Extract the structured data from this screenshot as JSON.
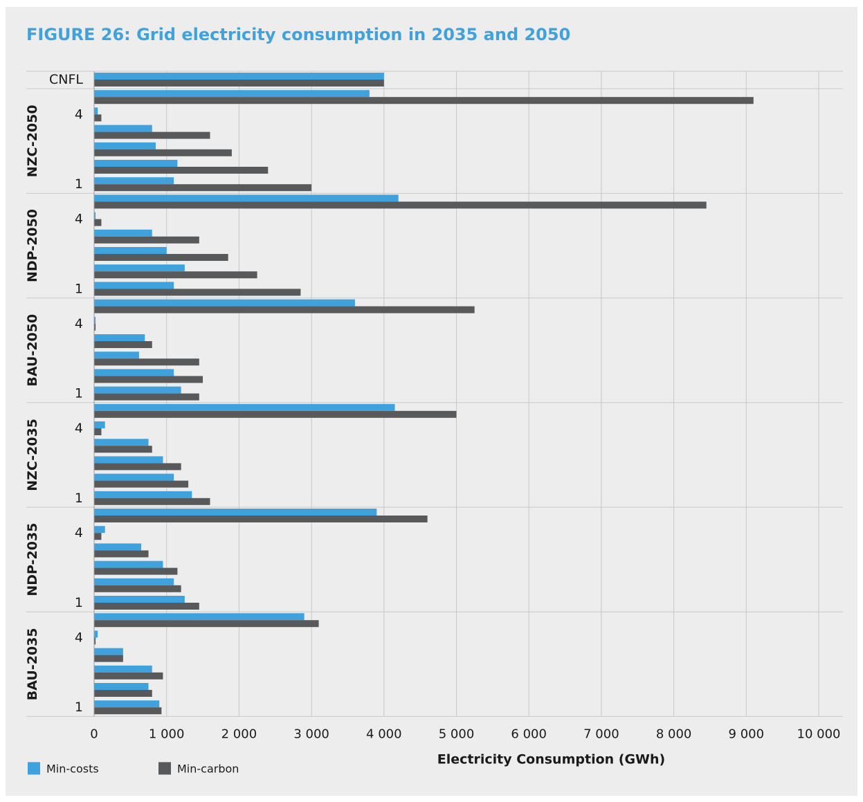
{
  "chart_data": {
    "type": "bar",
    "orientation": "horizontal",
    "title": "FIGURE 26: Grid electricity consumption in 2035 and 2050",
    "xlabel": "Electricity Consumption (GWh)",
    "ylabel": "",
    "xlim": [
      0,
      10000
    ],
    "xticks": [
      0,
      1000,
      2000,
      3000,
      4000,
      5000,
      6000,
      7000,
      8000,
      9000,
      10000
    ],
    "xtick_labels": [
      "0",
      "1 000",
      "2 000",
      "3 000",
      "4 000",
      "5 000",
      "6 000",
      "7 000",
      "8 000",
      "9 000",
      "10 000"
    ],
    "grid": true,
    "legend_position": "bottom-left",
    "series": [
      {
        "name": "Min-costs",
        "color": "#3fa2dd"
      },
      {
        "name": "Min-carbon",
        "color": "#58595b"
      }
    ],
    "groups": [
      {
        "name": "",
        "rows": [
          {
            "label": "CNFL",
            "values": [
              4000,
              4000
            ]
          }
        ]
      },
      {
        "name": "NZC-2050",
        "rows": [
          {
            "label": "",
            "values": [
              3800,
              9100
            ]
          },
          {
            "label": "4",
            "values": [
              50,
              100
            ]
          },
          {
            "label": "",
            "values": [
              800,
              1600
            ]
          },
          {
            "label": "",
            "values": [
              850,
              1900
            ]
          },
          {
            "label": "",
            "values": [
              1150,
              2400
            ]
          },
          {
            "label": "1",
            "values": [
              1100,
              3000
            ]
          }
        ]
      },
      {
        "name": "NDP-2050",
        "rows": [
          {
            "label": "",
            "values": [
              4200,
              8450
            ]
          },
          {
            "label": "4",
            "values": [
              20,
              100
            ]
          },
          {
            "label": "",
            "values": [
              800,
              1450
            ]
          },
          {
            "label": "",
            "values": [
              1000,
              1850
            ]
          },
          {
            "label": "",
            "values": [
              1250,
              2250
            ]
          },
          {
            "label": "1",
            "values": [
              1100,
              2850
            ]
          }
        ]
      },
      {
        "name": "BAU-2050",
        "rows": [
          {
            "label": "",
            "values": [
              3600,
              5250
            ]
          },
          {
            "label": "4",
            "values": [
              20,
              20
            ]
          },
          {
            "label": "",
            "values": [
              700,
              800
            ]
          },
          {
            "label": "",
            "values": [
              620,
              1450
            ]
          },
          {
            "label": "",
            "values": [
              1100,
              1500
            ]
          },
          {
            "label": "1",
            "values": [
              1200,
              1450
            ]
          }
        ]
      },
      {
        "name": "NZC-2035",
        "rows": [
          {
            "label": "",
            "values": [
              4150,
              5000
            ]
          },
          {
            "label": "4",
            "values": [
              150,
              100
            ]
          },
          {
            "label": "",
            "values": [
              750,
              800
            ]
          },
          {
            "label": "",
            "values": [
              950,
              1200
            ]
          },
          {
            "label": "",
            "values": [
              1100,
              1300
            ]
          },
          {
            "label": "1",
            "values": [
              1350,
              1600
            ]
          }
        ]
      },
      {
        "name": "NDP-2035",
        "rows": [
          {
            "label": "",
            "values": [
              3900,
              4600
            ]
          },
          {
            "label": "4",
            "values": [
              150,
              100
            ]
          },
          {
            "label": "",
            "values": [
              650,
              750
            ]
          },
          {
            "label": "",
            "values": [
              950,
              1150
            ]
          },
          {
            "label": "",
            "values": [
              1100,
              1200
            ]
          },
          {
            "label": "1",
            "values": [
              1250,
              1450
            ]
          }
        ]
      },
      {
        "name": "BAU-2035",
        "rows": [
          {
            "label": "",
            "values": [
              2900,
              3100
            ]
          },
          {
            "label": "4",
            "values": [
              50,
              20
            ]
          },
          {
            "label": "",
            "values": [
              400,
              400
            ]
          },
          {
            "label": "",
            "values": [
              800,
              950
            ]
          },
          {
            "label": "",
            "values": [
              750,
              800
            ]
          },
          {
            "label": "1",
            "values": [
              900,
              930
            ]
          }
        ]
      }
    ]
  }
}
